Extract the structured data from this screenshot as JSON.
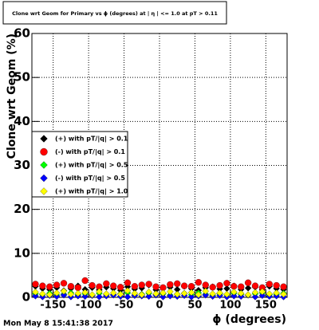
{
  "chart_data": {
    "type": "scatter",
    "title": "Clone wrt Geom for Primary vs ϕ (degrees) at | η | <= 1.0 at pT > 0.11",
    "x_label": "ϕ (degrees)",
    "y_label": "Clone wrt Geom (%)",
    "timestamp": "Mon May  8 15:41:38 2017",
    "x": [
      -175,
      -165,
      -155,
      -145,
      -135,
      -125,
      -115,
      -105,
      -95,
      -85,
      -75,
      -65,
      -55,
      -45,
      -35,
      -25,
      -15,
      -5,
      5,
      15,
      25,
      35,
      45,
      55,
      65,
      75,
      85,
      95,
      105,
      115,
      125,
      135,
      145,
      155,
      165,
      175
    ],
    "series": [
      {
        "name": "(+) with pT/|q| > 0.1",
        "color": "#000000",
        "marker": "diamond",
        "values": [
          2.5,
          2.0,
          1.8,
          2.2,
          1.5,
          2.0,
          2.6,
          1.8,
          2.2,
          1.7,
          2.3,
          2.0,
          1.6,
          2.4,
          1.9,
          2.1,
          2.8,
          1.7,
          2.0,
          2.3,
          1.8,
          2.5,
          2.0,
          1.6,
          2.2,
          2.4,
          1.9,
          2.0,
          2.6,
          1.8,
          2.1,
          2.3,
          1.7,
          2.5,
          2.0,
          1.8
        ]
      },
      {
        "name": "(-) with pT/|q| > 0.1",
        "color": "#ff0000",
        "marker": "circle",
        "values": [
          3.0,
          2.6,
          2.4,
          2.8,
          3.2,
          2.5,
          2.2,
          3.8,
          2.7,
          2.4,
          3.1,
          2.6,
          2.3,
          3.3,
          2.5,
          2.8,
          3.0,
          2.4,
          2.2,
          2.9,
          3.1,
          2.6,
          2.5,
          3.4,
          2.8,
          2.3,
          2.7,
          3.2,
          2.5,
          2.4,
          3.3,
          2.6,
          2.2,
          3.0,
          2.7,
          2.4
        ]
      },
      {
        "name": "(+) with pT/|q| > 0.5",
        "color": "#00ff00",
        "marker": "diamond",
        "values": [
          0.8,
          0.6,
          0.9,
          0.5,
          0.7,
          1.0,
          0.6,
          0.8,
          0.5,
          0.9,
          0.7,
          0.6,
          0.8,
          1.0,
          0.5,
          0.7,
          0.9,
          0.6,
          0.8,
          0.5,
          0.7,
          0.9,
          0.6,
          1.0,
          0.7,
          0.5,
          0.8,
          0.6,
          0.9,
          0.7,
          0.5,
          0.8,
          1.0,
          0.6,
          0.7,
          0.9
        ]
      },
      {
        "name": "(-) with pT/|q| > 0.5",
        "color": "#0000ff",
        "marker": "diamond",
        "values": [
          0.3,
          0.1,
          0.4,
          0.2,
          0.5,
          0.1,
          0.3,
          0.2,
          0.4,
          0.1,
          0.3,
          0.5,
          0.2,
          0.1,
          0.4,
          0.3,
          0.2,
          0.5,
          0.1,
          0.3,
          0.2,
          0.4,
          0.1,
          0.3,
          0.5,
          0.2,
          0.4,
          0.1,
          0.3,
          0.2,
          0.5,
          0.1,
          0.4,
          0.2,
          0.3,
          0.1
        ]
      },
      {
        "name": "(+) with pT/|q| > 1.0",
        "color": "#ffff00",
        "marker": "diamond",
        "values": [
          1.2,
          0.8,
          0.6,
          1.0,
          1.4,
          0.7,
          0.9,
          1.1,
          0.6,
          1.3,
          0.8,
          1.0,
          0.7,
          1.5,
          0.9,
          0.6,
          1.2,
          0.8,
          1.0,
          1.3,
          0.7,
          0.9,
          1.1,
          0.6,
          1.4,
          0.8,
          1.0,
          0.7,
          1.2,
          0.9,
          0.6,
          1.1,
          1.3,
          0.8,
          1.0,
          0.7
        ]
      }
    ],
    "xlim": [
      -180,
      180
    ],
    "xticks": [
      -150,
      -100,
      -50,
      0,
      50,
      100,
      150
    ],
    "ylim": [
      0,
      60
    ],
    "yticks": [
      0,
      10,
      20,
      30,
      40,
      50,
      60
    ],
    "grid": true,
    "legend": "left"
  }
}
